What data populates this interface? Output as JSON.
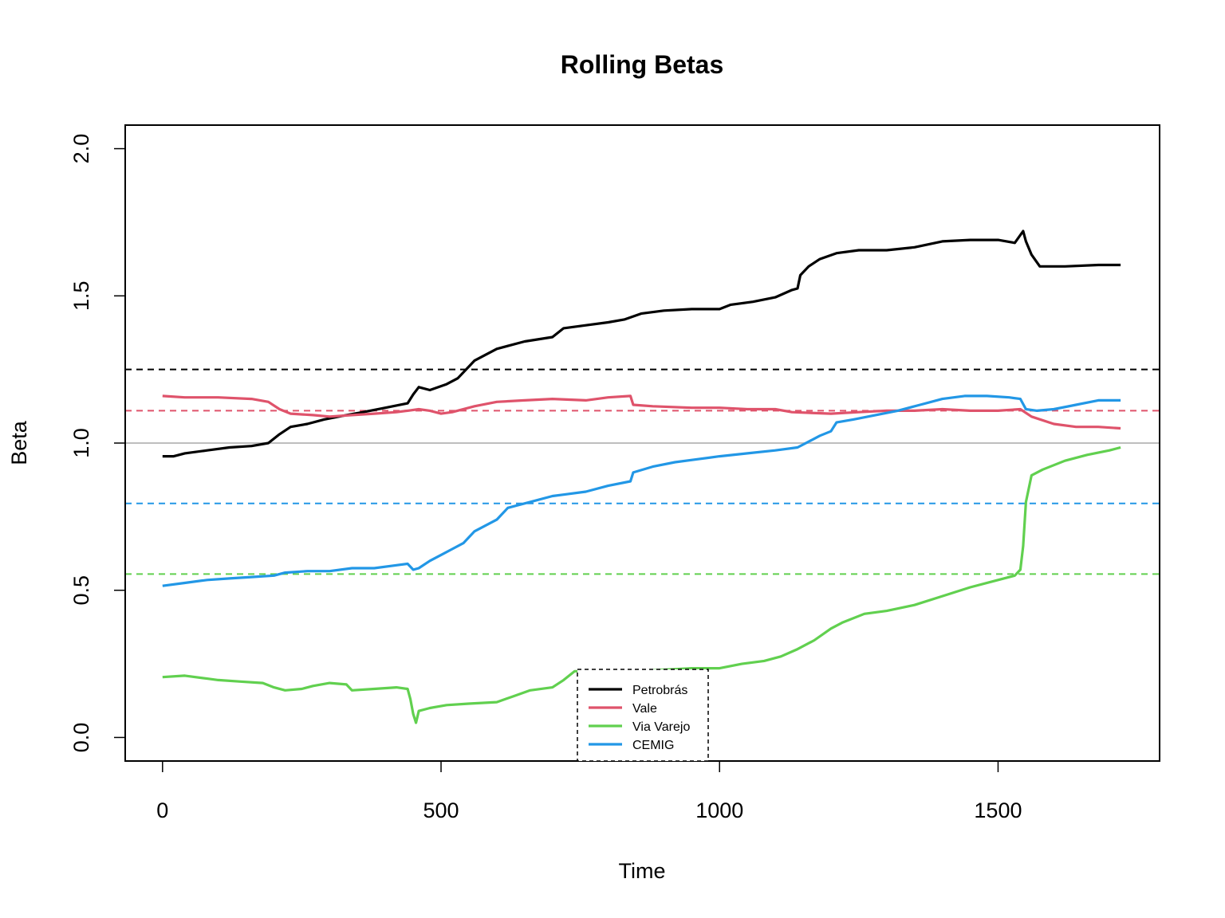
{
  "chart_data": {
    "type": "line",
    "title": "Rolling Betas",
    "xlabel": "Time",
    "ylabel": "Beta",
    "xlim": [
      -67,
      1790
    ],
    "ylim": [
      -0.08,
      2.08
    ],
    "x_ticks": [
      "0",
      "500",
      "1000",
      "1500"
    ],
    "x_tick_values": [
      0,
      500,
      1000,
      1500
    ],
    "y_ticks": [
      "0.0",
      "0.5",
      "1.0",
      "1.5",
      "2.0"
    ],
    "y_tick_values": [
      0,
      0.5,
      1.0,
      1.5,
      2.0
    ],
    "reference_line": {
      "y": 1.0,
      "color": "#BEBEBE"
    },
    "legend": {
      "placement": "bottom-center"
    },
    "series": [
      {
        "name": "Petrobrás",
        "color": "#000000",
        "mean": 1.25,
        "points": [
          [
            0,
            0.955
          ],
          [
            20,
            0.955
          ],
          [
            40,
            0.965
          ],
          [
            80,
            0.975
          ],
          [
            120,
            0.985
          ],
          [
            160,
            0.99
          ],
          [
            190,
            1.0
          ],
          [
            210,
            1.03
          ],
          [
            230,
            1.055
          ],
          [
            260,
            1.065
          ],
          [
            290,
            1.08
          ],
          [
            330,
            1.095
          ],
          [
            360,
            1.105
          ],
          [
            400,
            1.12
          ],
          [
            440,
            1.135
          ],
          [
            450,
            1.165
          ],
          [
            460,
            1.19
          ],
          [
            480,
            1.18
          ],
          [
            510,
            1.2
          ],
          [
            530,
            1.22
          ],
          [
            560,
            1.28
          ],
          [
            600,
            1.32
          ],
          [
            650,
            1.345
          ],
          [
            700,
            1.36
          ],
          [
            720,
            1.39
          ],
          [
            760,
            1.4
          ],
          [
            800,
            1.41
          ],
          [
            830,
            1.42
          ],
          [
            860,
            1.44
          ],
          [
            900,
            1.45
          ],
          [
            950,
            1.455
          ],
          [
            1000,
            1.455
          ],
          [
            1020,
            1.47
          ],
          [
            1060,
            1.48
          ],
          [
            1100,
            1.495
          ],
          [
            1130,
            1.52
          ],
          [
            1140,
            1.525
          ],
          [
            1145,
            1.57
          ],
          [
            1160,
            1.6
          ],
          [
            1180,
            1.625
          ],
          [
            1210,
            1.645
          ],
          [
            1250,
            1.655
          ],
          [
            1300,
            1.655
          ],
          [
            1350,
            1.665
          ],
          [
            1400,
            1.685
          ],
          [
            1450,
            1.69
          ],
          [
            1500,
            1.69
          ],
          [
            1530,
            1.68
          ],
          [
            1545,
            1.72
          ],
          [
            1550,
            1.685
          ],
          [
            1560,
            1.64
          ],
          [
            1575,
            1.6
          ],
          [
            1620,
            1.6
          ],
          [
            1680,
            1.605
          ],
          [
            1720,
            1.605
          ]
        ]
      },
      {
        "name": "Vale",
        "color": "#DF536B",
        "mean": 1.11,
        "points": [
          [
            0,
            1.16
          ],
          [
            40,
            1.155
          ],
          [
            100,
            1.155
          ],
          [
            160,
            1.15
          ],
          [
            190,
            1.14
          ],
          [
            210,
            1.115
          ],
          [
            230,
            1.1
          ],
          [
            270,
            1.095
          ],
          [
            300,
            1.09
          ],
          [
            340,
            1.095
          ],
          [
            380,
            1.1
          ],
          [
            420,
            1.105
          ],
          [
            440,
            1.11
          ],
          [
            460,
            1.115
          ],
          [
            480,
            1.11
          ],
          [
            500,
            1.1
          ],
          [
            520,
            1.105
          ],
          [
            560,
            1.125
          ],
          [
            600,
            1.14
          ],
          [
            650,
            1.145
          ],
          [
            700,
            1.15
          ],
          [
            760,
            1.145
          ],
          [
            800,
            1.155
          ],
          [
            840,
            1.16
          ],
          [
            845,
            1.13
          ],
          [
            880,
            1.125
          ],
          [
            950,
            1.12
          ],
          [
            1000,
            1.12
          ],
          [
            1050,
            1.115
          ],
          [
            1100,
            1.115
          ],
          [
            1130,
            1.105
          ],
          [
            1200,
            1.1
          ],
          [
            1250,
            1.105
          ],
          [
            1300,
            1.11
          ],
          [
            1350,
            1.11
          ],
          [
            1400,
            1.115
          ],
          [
            1450,
            1.11
          ],
          [
            1500,
            1.11
          ],
          [
            1540,
            1.115
          ],
          [
            1560,
            1.09
          ],
          [
            1600,
            1.065
          ],
          [
            1640,
            1.055
          ],
          [
            1680,
            1.055
          ],
          [
            1720,
            1.05
          ]
        ]
      },
      {
        "name": "Via Varejo",
        "color": "#61D04F",
        "mean": 0.555,
        "points": [
          [
            0,
            0.205
          ],
          [
            40,
            0.21
          ],
          [
            80,
            0.2
          ],
          [
            100,
            0.195
          ],
          [
            140,
            0.19
          ],
          [
            180,
            0.185
          ],
          [
            200,
            0.17
          ],
          [
            220,
            0.16
          ],
          [
            250,
            0.165
          ],
          [
            270,
            0.175
          ],
          [
            300,
            0.185
          ],
          [
            330,
            0.18
          ],
          [
            340,
            0.16
          ],
          [
            380,
            0.165
          ],
          [
            420,
            0.17
          ],
          [
            440,
            0.165
          ],
          [
            445,
            0.13
          ],
          [
            450,
            0.08
          ],
          [
            455,
            0.05
          ],
          [
            460,
            0.09
          ],
          [
            480,
            0.1
          ],
          [
            510,
            0.11
          ],
          [
            550,
            0.115
          ],
          [
            600,
            0.12
          ],
          [
            630,
            0.14
          ],
          [
            660,
            0.16
          ],
          [
            700,
            0.17
          ],
          [
            720,
            0.195
          ],
          [
            740,
            0.225
          ],
          [
            760,
            0.225
          ],
          [
            800,
            0.225
          ],
          [
            850,
            0.225
          ],
          [
            900,
            0.23
          ],
          [
            950,
            0.235
          ],
          [
            1000,
            0.235
          ],
          [
            1040,
            0.25
          ],
          [
            1080,
            0.26
          ],
          [
            1110,
            0.275
          ],
          [
            1140,
            0.3
          ],
          [
            1170,
            0.33
          ],
          [
            1200,
            0.37
          ],
          [
            1220,
            0.39
          ],
          [
            1260,
            0.42
          ],
          [
            1300,
            0.43
          ],
          [
            1350,
            0.45
          ],
          [
            1400,
            0.48
          ],
          [
            1450,
            0.51
          ],
          [
            1500,
            0.535
          ],
          [
            1530,
            0.55
          ],
          [
            1540,
            0.57
          ],
          [
            1545,
            0.65
          ],
          [
            1550,
            0.8
          ],
          [
            1560,
            0.89
          ],
          [
            1580,
            0.91
          ],
          [
            1620,
            0.94
          ],
          [
            1660,
            0.96
          ],
          [
            1700,
            0.975
          ],
          [
            1720,
            0.985
          ]
        ]
      },
      {
        "name": "CEMIG",
        "color": "#2297E6",
        "mean": 0.795,
        "points": [
          [
            0,
            0.515
          ],
          [
            40,
            0.525
          ],
          [
            80,
            0.535
          ],
          [
            120,
            0.54
          ],
          [
            160,
            0.545
          ],
          [
            200,
            0.55
          ],
          [
            220,
            0.56
          ],
          [
            260,
            0.565
          ],
          [
            300,
            0.565
          ],
          [
            340,
            0.575
          ],
          [
            380,
            0.575
          ],
          [
            420,
            0.585
          ],
          [
            440,
            0.59
          ],
          [
            450,
            0.57
          ],
          [
            460,
            0.575
          ],
          [
            480,
            0.6
          ],
          [
            500,
            0.62
          ],
          [
            520,
            0.64
          ],
          [
            540,
            0.66
          ],
          [
            560,
            0.7
          ],
          [
            600,
            0.74
          ],
          [
            620,
            0.78
          ],
          [
            660,
            0.8
          ],
          [
            700,
            0.82
          ],
          [
            720,
            0.825
          ],
          [
            760,
            0.835
          ],
          [
            800,
            0.855
          ],
          [
            840,
            0.87
          ],
          [
            845,
            0.9
          ],
          [
            880,
            0.92
          ],
          [
            920,
            0.935
          ],
          [
            960,
            0.945
          ],
          [
            1000,
            0.955
          ],
          [
            1050,
            0.965
          ],
          [
            1100,
            0.975
          ],
          [
            1140,
            0.985
          ],
          [
            1160,
            1.005
          ],
          [
            1180,
            1.025
          ],
          [
            1200,
            1.04
          ],
          [
            1210,
            1.07
          ],
          [
            1240,
            1.08
          ],
          [
            1280,
            1.095
          ],
          [
            1320,
            1.11
          ],
          [
            1360,
            1.13
          ],
          [
            1400,
            1.15
          ],
          [
            1440,
            1.16
          ],
          [
            1480,
            1.16
          ],
          [
            1520,
            1.155
          ],
          [
            1540,
            1.15
          ],
          [
            1550,
            1.115
          ],
          [
            1570,
            1.11
          ],
          [
            1600,
            1.115
          ],
          [
            1640,
            1.13
          ],
          [
            1680,
            1.145
          ],
          [
            1720,
            1.145
          ]
        ]
      }
    ]
  }
}
